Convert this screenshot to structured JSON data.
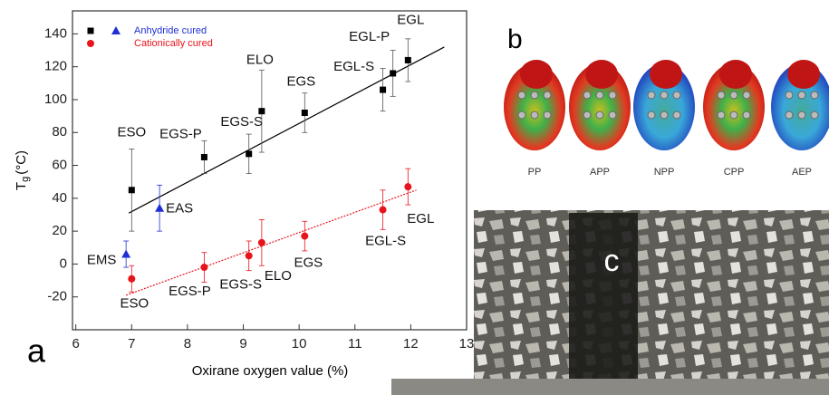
{
  "chart_data": {
    "type": "scatter",
    "x_label": "Oxirane oxygen value (%)",
    "y_label": [
      "T",
      "g",
      "(°C)"
    ],
    "xlim": [
      5.94,
      13
    ],
    "ylim": [
      -40,
      154
    ],
    "xticks": [
      6,
      7,
      8,
      9,
      10,
      11,
      12,
      13
    ],
    "yticks": [
      -20,
      0,
      20,
      40,
      60,
      80,
      100,
      120,
      140
    ],
    "series": [
      {
        "name": "Anhydride cured",
        "color": "#000000",
        "marker": "square",
        "x": [
          7.0,
          8.3,
          9.1,
          9.33,
          10.1,
          11.5,
          11.68,
          11.95
        ],
        "values": [
          45,
          65,
          67,
          93,
          92,
          106,
          116,
          124
        ],
        "errors": [
          25,
          10,
          12,
          25,
          12,
          13,
          14,
          13
        ],
        "labels": [
          "ESO",
          "EGS-P",
          "EGS-S",
          "ELO",
          "EGS",
          "EGL-S",
          "EGL-P",
          "EGL"
        ]
      },
      {
        "color": "#1f2fd6",
        "marker": "triangle",
        "x": [
          6.9,
          7.5
        ],
        "values": [
          6,
          34
        ],
        "errors": [
          8,
          14
        ],
        "labels": [
          "EMS",
          "EAS"
        ]
      },
      {
        "name": "Cationically cured",
        "color": "#e8141b",
        "marker": "circle",
        "x": [
          7.0,
          8.3,
          9.1,
          9.33,
          10.1,
          11.5,
          11.95
        ],
        "values": [
          -9,
          -2,
          5,
          13,
          17,
          33,
          47
        ],
        "errors": [
          8,
          9,
          9,
          14,
          9,
          12,
          11
        ],
        "labels": [
          "ESO",
          "EGS-P",
          "EGS-S",
          "ELO",
          "EGS",
          "EGL-S",
          "EGL"
        ]
      }
    ],
    "fits": [
      {
        "color": "#000000",
        "x": [
          6.95,
          12.6
        ],
        "values": [
          31,
          132
        ]
      },
      {
        "color": "#e8141b",
        "x": [
          6.9,
          12.1
        ],
        "values": [
          -19,
          45
        ]
      }
    ]
  },
  "panel_labels": [
    "a",
    "b",
    "c"
  ],
  "molecules": [
    "PP",
    "APP",
    "NPP",
    "CPP",
    "AEP"
  ]
}
